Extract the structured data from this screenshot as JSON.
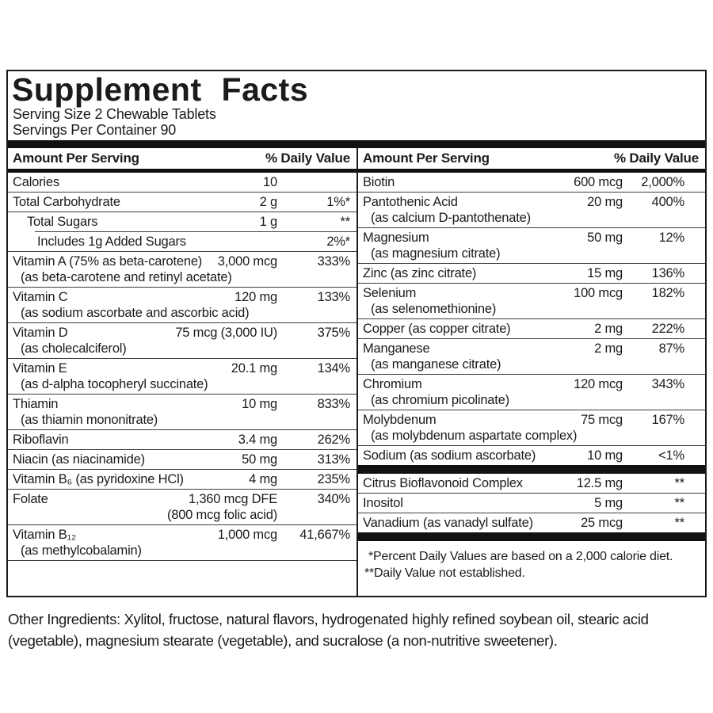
{
  "header": {
    "title": "Supplement Facts",
    "serving_size": "Serving Size 2 Chewable Tablets",
    "servings_per_container": "Servings Per Container 90"
  },
  "table": {
    "amount_header": "Amount Per Serving",
    "dv_header": "% Daily Value",
    "left_rows": [
      {
        "name": "Calories",
        "amount": "10",
        "dv": ""
      },
      {
        "name": "Total Carbohydrate",
        "amount": "2 g",
        "dv": "1%*"
      },
      {
        "name": "Total Sugars",
        "indent": 1,
        "amount": "1 g",
        "dv": "**"
      },
      {
        "name": "Includes 1g Added Sugars",
        "indent": 2,
        "amount": "",
        "dv": "2%*",
        "sep": "indent"
      },
      {
        "name": "Vitamin A (75% as beta-carotene)",
        "sub": "(as beta-carotene and retinyl acetate)",
        "amount": "3,000 mcg",
        "dv": "333%"
      },
      {
        "name": "Vitamin C",
        "sub": "(as sodium ascorbate and ascorbic acid)",
        "amount": "120 mg",
        "dv": "133%"
      },
      {
        "name": "Vitamin D",
        "sub": "(as cholecalciferol)",
        "amount": "75 mcg (3,000 IU)",
        "dv": "375%"
      },
      {
        "name": "Vitamin E",
        "sub": "(as d-alpha tocopheryl succinate)",
        "amount": "20.1 mg",
        "dv": "134%"
      },
      {
        "name": "Thiamin",
        "sub": "(as thiamin mononitrate)",
        "amount": "10 mg",
        "dv": "833%"
      },
      {
        "name": "Riboflavin",
        "amount": "3.4 mg",
        "dv": "262%"
      },
      {
        "name": "Niacin (as niacinamide)",
        "amount": "50 mg",
        "dv": "313%"
      },
      {
        "name": "Vitamin B₆ (as pyridoxine HCl)",
        "amount": "4 mg",
        "dv": "235%"
      },
      {
        "name": "Folate",
        "amount": "1,360 mcg DFE",
        "amount2": "(800 mcg folic acid)",
        "dv": "340%"
      },
      {
        "name": "Vitamin B₁₂",
        "sub": "(as methylcobalamin)",
        "amount": "1,000 mcg",
        "dv": "41,667%"
      }
    ],
    "right_rows": [
      {
        "name": "Biotin",
        "amount": "600 mcg",
        "dv": "2,000%"
      },
      {
        "name": "Pantothenic Acid",
        "sub": "(as calcium D-pantothenate)",
        "amount": "20 mg",
        "dv": "400%"
      },
      {
        "name": "Magnesium",
        "sub": "(as magnesium citrate)",
        "amount": "50 mg",
        "dv": "12%"
      },
      {
        "name": "Zinc (as zinc citrate)",
        "amount": "15 mg",
        "dv": "136%"
      },
      {
        "name": "Selenium",
        "sub": "(as selenomethionine)",
        "amount": "100 mcg",
        "dv": "182%"
      },
      {
        "name": "Copper (as copper citrate)",
        "amount": "2 mg",
        "dv": "222%"
      },
      {
        "name": "Manganese",
        "sub": "(as manganese citrate)",
        "amount": "2 mg",
        "dv": "87%"
      },
      {
        "name": "Chromium",
        "sub": "(as chromium picolinate)",
        "amount": "120 mcg",
        "dv": "343%"
      },
      {
        "name": "Molybdenum",
        "sub": "(as molybdenum aspartate complex)",
        "amount": "75 mcg",
        "dv": "167%"
      },
      {
        "name": "Sodium (as sodium ascorbate)",
        "amount": "10 mg",
        "dv": "<1%"
      },
      {
        "type": "bar"
      },
      {
        "name": "Citrus Bioflavonoid Complex",
        "amount": "12.5 mg",
        "dv": "**"
      },
      {
        "name": "Inositol",
        "amount": "5 mg",
        "dv": "**"
      },
      {
        "name": "Vanadium (as vanadyl sulfate)",
        "amount": "25 mcg",
        "dv": "**"
      },
      {
        "type": "bar"
      }
    ],
    "footnotes": {
      "line1": "*Percent Daily Values are based on a 2,000 calorie diet.",
      "line2": "**Daily Value not established."
    }
  },
  "footer": {
    "other_ingredients": "Other Ingredients: Xylitol, fructose, natural flavors, hydrogenated highly refined soybean oil, stearic acid (vegetable), magnesium stearate (vegetable), and sucralose (a non-nutritive sweetener)."
  }
}
